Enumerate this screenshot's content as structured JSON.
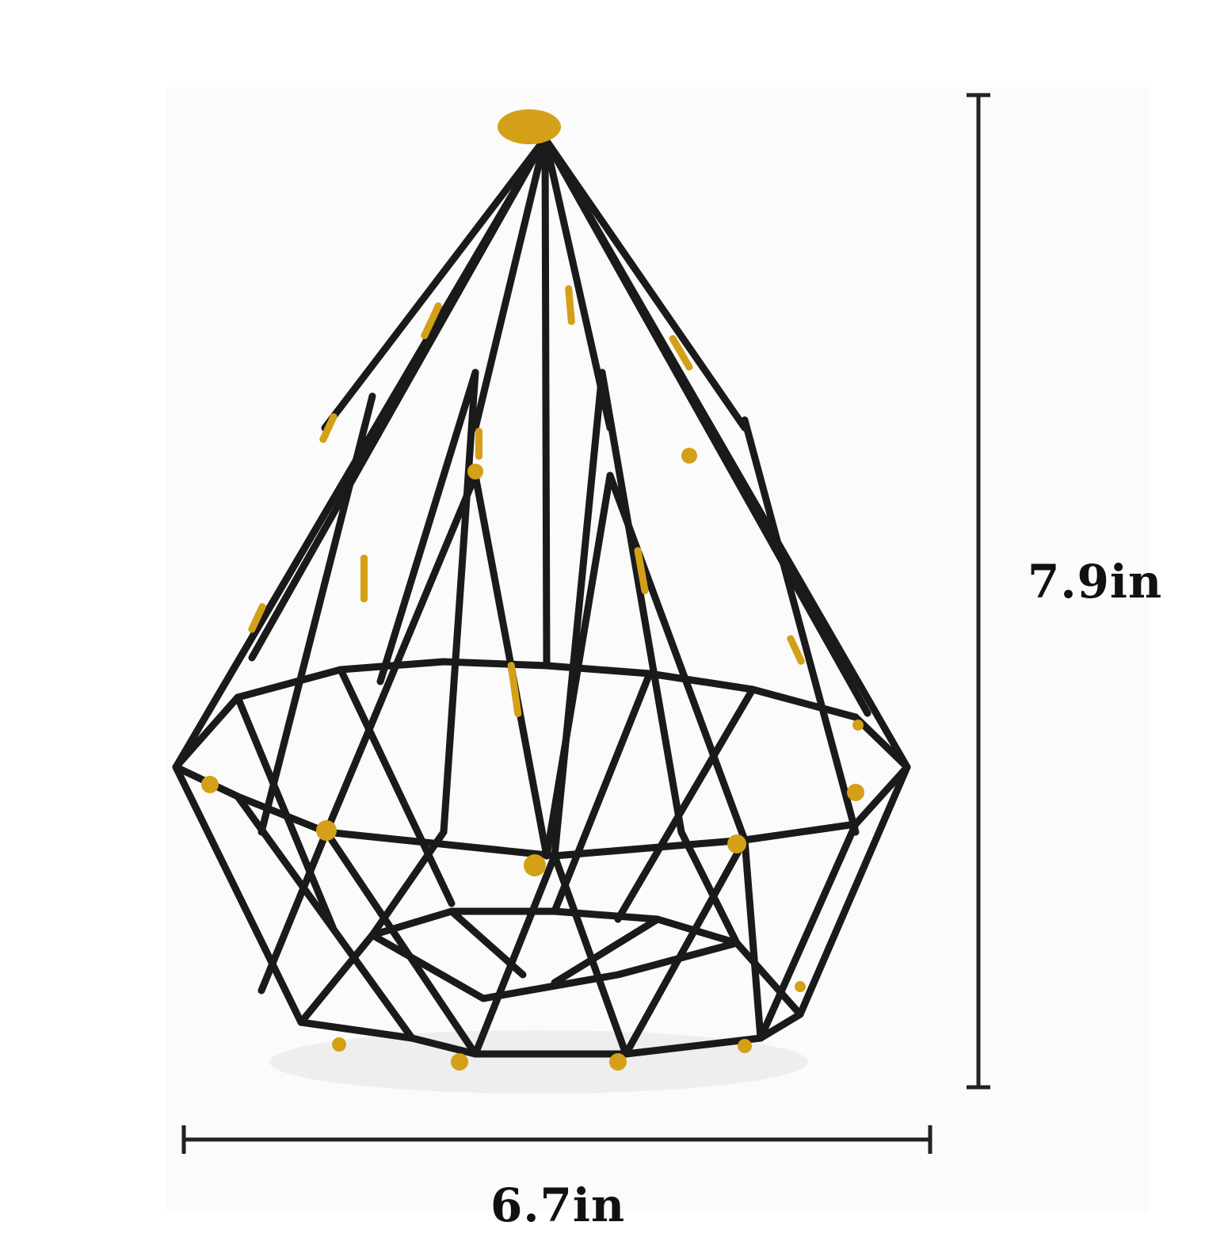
{
  "dimensions": {
    "height_label": "7.9in",
    "width_label": "6.7in"
  },
  "product": {
    "icon": "geometric-wire-diamond-planter",
    "wire_color": "#1a1a1a",
    "accent_color": "#d4a017"
  },
  "colors": {
    "background": "#ffffff",
    "dimension_line": "#222222",
    "label_text": "#111111"
  }
}
